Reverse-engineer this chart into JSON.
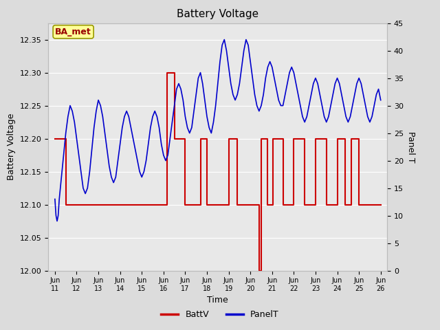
{
  "title": "Battery Voltage",
  "xlabel": "Time",
  "ylabel_left": "Battery Voltage",
  "ylabel_right": "Panel T",
  "legend_label1": "BattV",
  "legend_label2": "PanelT",
  "annotation_text": "BA_met",
  "ylim_left": [
    12.0,
    12.375
  ],
  "ylim_right": [
    0,
    45
  ],
  "xtick_labels": [
    "Jun\n11",
    "Jun\n12",
    "Jun\n13",
    "Jun\n14",
    "Jun\n15",
    "Jun\n16",
    "Jun\n17",
    "Jun\n18",
    "Jun\n19",
    "Jun\n20",
    "Jun\n21",
    "Jun\n22",
    "Jun\n23",
    "Jun\n24",
    "Jun\n25",
    "Jun\n26"
  ],
  "background_color": "#dcdcdc",
  "plot_bg_color": "#e8e8e8",
  "grid_color": "#ffffff",
  "battv_color": "#cc0000",
  "panelt_color": "#0000cc",
  "annotation_bg": "#ffff99",
  "annotation_edge": "#999900",
  "annotation_text_color": "#990000",
  "battv_x": [
    0.0,
    0.5,
    0.5,
    5.15,
    5.15,
    5.5,
    5.5,
    6.0,
    6.0,
    6.7,
    6.7,
    7.0,
    7.0,
    7.2,
    7.2,
    8.0,
    8.0,
    8.4,
    8.4,
    9.4,
    9.4,
    9.5,
    9.5,
    9.8,
    9.8,
    10.05,
    10.05,
    10.5,
    10.5,
    11.0,
    11.0,
    11.5,
    11.5,
    12.0,
    12.0,
    12.5,
    12.5,
    13.0,
    13.0,
    13.35,
    13.35,
    13.65,
    13.65,
    14.0,
    14.0,
    14.15,
    14.15,
    14.5,
    14.5,
    15.0
  ],
  "battv_y": [
    12.2,
    12.2,
    12.1,
    12.1,
    12.3,
    12.3,
    12.2,
    12.2,
    12.1,
    12.1,
    12.2,
    12.2,
    12.1,
    12.1,
    12.1,
    12.1,
    12.2,
    12.2,
    12.1,
    12.1,
    12.0,
    12.0,
    12.2,
    12.2,
    12.1,
    12.1,
    12.2,
    12.2,
    12.1,
    12.1,
    12.2,
    12.2,
    12.1,
    12.1,
    12.2,
    12.2,
    12.1,
    12.1,
    12.2,
    12.2,
    12.1,
    12.1,
    12.2,
    12.2,
    12.1,
    12.1,
    12.1,
    12.1,
    12.1,
    12.1
  ],
  "panelt_x": [
    0.0,
    0.05,
    0.1,
    0.15,
    0.2,
    0.3,
    0.4,
    0.5,
    0.6,
    0.7,
    0.8,
    0.9,
    1.0,
    1.1,
    1.2,
    1.3,
    1.4,
    1.5,
    1.6,
    1.7,
    1.8,
    1.9,
    2.0,
    2.1,
    2.2,
    2.3,
    2.4,
    2.5,
    2.6,
    2.7,
    2.8,
    2.9,
    3.0,
    3.1,
    3.2,
    3.3,
    3.4,
    3.5,
    3.6,
    3.7,
    3.8,
    3.9,
    4.0,
    4.1,
    4.2,
    4.3,
    4.4,
    4.5,
    4.6,
    4.7,
    4.8,
    4.9,
    5.0,
    5.1,
    5.2,
    5.3,
    5.4,
    5.5,
    5.6,
    5.7,
    5.8,
    5.9,
    6.0,
    6.1,
    6.2,
    6.3,
    6.4,
    6.5,
    6.6,
    6.7,
    6.8,
    6.9,
    7.0,
    7.1,
    7.2,
    7.3,
    7.4,
    7.5,
    7.6,
    7.7,
    7.8,
    7.9,
    8.0,
    8.1,
    8.2,
    8.3,
    8.4,
    8.5,
    8.6,
    8.7,
    8.8,
    8.9,
    9.0,
    9.1,
    9.2,
    9.3,
    9.4,
    9.5,
    9.6,
    9.7,
    9.8,
    9.9,
    10.0,
    10.1,
    10.2,
    10.3,
    10.4,
    10.5,
    10.6,
    10.7,
    10.8,
    10.9,
    11.0,
    11.1,
    11.2,
    11.3,
    11.4,
    11.5,
    11.6,
    11.7,
    11.8,
    11.9,
    12.0,
    12.1,
    12.2,
    12.3,
    12.4,
    12.5,
    12.6,
    12.7,
    12.8,
    12.9,
    13.0,
    13.1,
    13.2,
    13.3,
    13.4,
    13.5,
    13.6,
    13.7,
    13.8,
    13.9,
    14.0,
    14.1,
    14.2,
    14.3,
    14.4,
    14.5,
    14.6,
    14.7,
    14.8,
    14.9,
    15.0
  ],
  "panelt_y": [
    13,
    10,
    9,
    10,
    13,
    17,
    21,
    25,
    28,
    30,
    29,
    27,
    24,
    21,
    18,
    15,
    14,
    15,
    18,
    22,
    26,
    29,
    31,
    30,
    28,
    25,
    22,
    19,
    17,
    16,
    17,
    20,
    23,
    26,
    28,
    29,
    28,
    26,
    24,
    22,
    20,
    18,
    17,
    18,
    20,
    23,
    26,
    28,
    29,
    28,
    26,
    23,
    21,
    20,
    21,
    24,
    27,
    30,
    33,
    34,
    33,
    31,
    28,
    26,
    25,
    26,
    29,
    32,
    35,
    36,
    34,
    31,
    28,
    26,
    25,
    27,
    30,
    34,
    38,
    41,
    42,
    40,
    37,
    34,
    32,
    31,
    32,
    34,
    37,
    40,
    42,
    41,
    38,
    35,
    32,
    30,
    29,
    30,
    32,
    35,
    37,
    38,
    37,
    35,
    33,
    31,
    30,
    30,
    32,
    34,
    36,
    37,
    36,
    34,
    32,
    30,
    28,
    27,
    28,
    30,
    32,
    34,
    35,
    34,
    32,
    30,
    28,
    27,
    28,
    30,
    32,
    34,
    35,
    34,
    32,
    30,
    28,
    27,
    28,
    30,
    32,
    34,
    35,
    34,
    32,
    30,
    28,
    27,
    28,
    30,
    32,
    33,
    31
  ]
}
